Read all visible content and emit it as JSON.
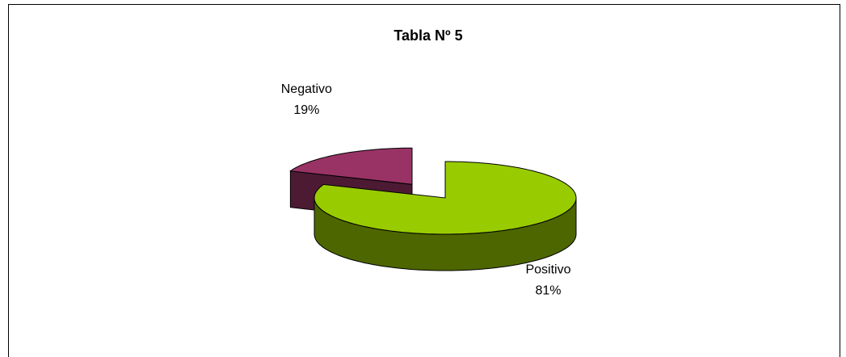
{
  "chart_data": {
    "type": "pie",
    "title": "Tabla Nº 5",
    "categories": [
      "Negativo",
      "Positivo"
    ],
    "values": [
      19,
      81
    ],
    "value_labels": [
      "19%",
      "81%"
    ],
    "colors": [
      "#993366",
      "#99cc00"
    ]
  }
}
